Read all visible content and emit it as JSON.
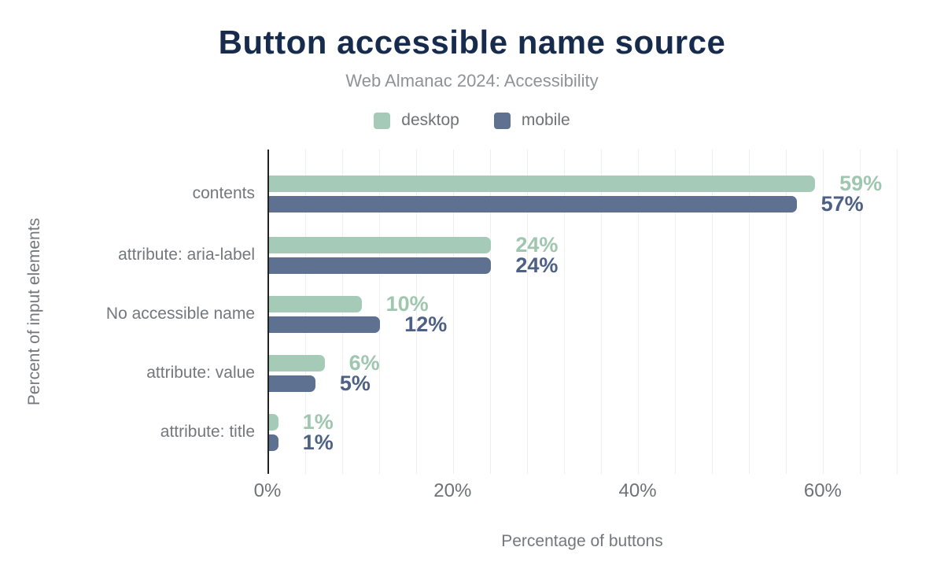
{
  "title": "Button accessible name source",
  "subtitle": "Web Almanac 2024: Accessibility",
  "legend": {
    "items": [
      {
        "label": "desktop",
        "color": "#a6cab8"
      },
      {
        "label": "mobile",
        "color": "#5f7190"
      }
    ]
  },
  "chart_data": {
    "type": "bar",
    "orientation": "horizontal",
    "title": "Button accessible name source",
    "subtitle": "Web Almanac 2024: Accessibility",
    "xlabel": "Percentage of buttons",
    "ylabel": "Percent of input elements",
    "categories": [
      "contents",
      "attribute: aria-label",
      "No accessible name",
      "attribute: value",
      "attribute: title"
    ],
    "series": [
      {
        "name": "desktop",
        "values": [
          59,
          24,
          10,
          6,
          1
        ],
        "bar_color": "#a6cab8",
        "label_color": "#9fc6af"
      },
      {
        "name": "mobile",
        "values": [
          57,
          24,
          12,
          5,
          1
        ],
        "bar_color": "#5f7190",
        "label_color": "#4d6185"
      }
    ],
    "value_suffix": "%",
    "x_ticks": [
      {
        "value": 0,
        "label": "0%"
      },
      {
        "value": 20,
        "label": "20%"
      },
      {
        "value": 40,
        "label": "40%"
      },
      {
        "value": 60,
        "label": "60%"
      }
    ],
    "xlim": [
      0,
      68
    ],
    "grid_interval_percent": 4,
    "grid": true,
    "legend_position": "top",
    "colors": {
      "title": "#172b4d",
      "muted_text": "#74777b",
      "axis_line": "#222222",
      "gridline": "#efefef",
      "background": "#ffffff"
    }
  }
}
